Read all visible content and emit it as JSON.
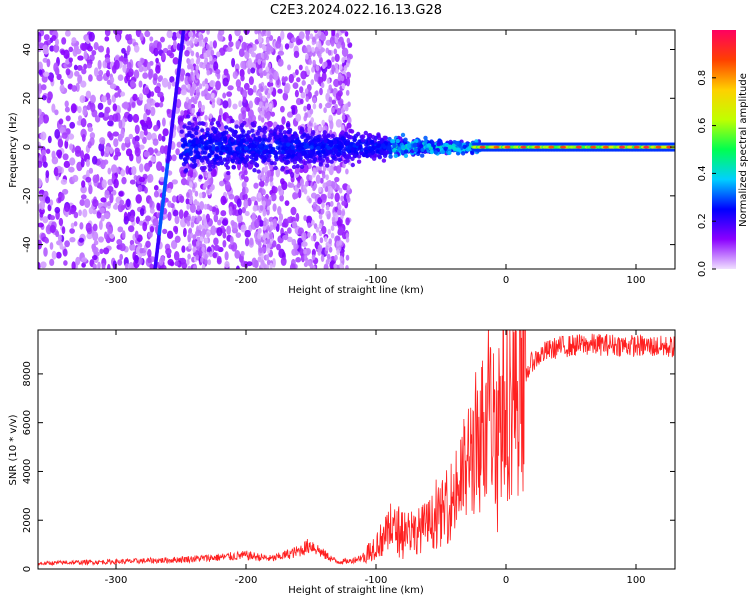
{
  "title": "C2E3.2024.022.16.13.G28",
  "chart_data": [
    {
      "type": "heatmap",
      "xlabel": "Height of straight line (km)",
      "ylabel": "Frequency (Hz)",
      "xlim": [
        -360,
        130
      ],
      "ylim": [
        -50,
        48
      ],
      "x_ticks": [
        -300,
        -200,
        -100,
        0,
        100
      ],
      "x_tick_labels": [
        "-300",
        "-200",
        "-100",
        "0",
        "100"
      ],
      "y_ticks": [
        -40,
        -20,
        0,
        20,
        40
      ],
      "y_tick_labels": [
        "-40",
        "-20",
        "0",
        "20",
        "40"
      ],
      "grid": false,
      "colorbar": {
        "label": "Normalized spectral amplitude",
        "range": [
          0,
          1
        ],
        "ticks": [
          0,
          0.2,
          0.4,
          0.6,
          0.8
        ],
        "tick_labels": [
          "0.0",
          "0.2",
          "0.4",
          "0.6",
          "0.8"
        ],
        "colormap": [
          "#f0e0ff",
          "#8a00ff",
          "#0000ff",
          "#00d0ff",
          "#00ff50",
          "#c0ff00",
          "#ffd000",
          "#ff4000",
          "#ff0060"
        ]
      },
      "features": [
        {
          "name": "",
          "x": [
            -270,
            -248
          ],
          "y": [
            -50,
            48
          ],
          "amplitude": 0.25
        },
        {
          "name": "",
          "x": [
            -20,
            130
          ],
          "y": [
            0,
            0
          ],
          "amplitude": 0.9
        }
      ]
    },
    {
      "type": "line",
      "xlabel": "Height of straight line (km)",
      "ylabel": "SNR (10 * v/v)",
      "xlim": [
        -360,
        130
      ],
      "ylim": [
        0,
        9800
      ],
      "x_ticks": [
        -300,
        -200,
        -100,
        0,
        100
      ],
      "x_tick_labels": [
        "-300",
        "-200",
        "-100",
        "0",
        "100"
      ],
      "y_ticks": [
        0,
        2000,
        4000,
        6000,
        8000
      ],
      "y_tick_labels": [
        "0",
        "2000",
        "4000",
        "6000",
        "8000"
      ],
      "grid": false,
      "color": "#ff2020",
      "series": [
        {
          "x": [
            -360,
            -340,
            -320,
            -300,
            -280,
            -260,
            -240,
            -220,
            -200,
            -180,
            -160,
            -150,
            -140,
            -130,
            -120,
            -110,
            -100,
            -90,
            -80,
            -70,
            -60,
            -50,
            -40,
            -30,
            -25,
            -20,
            -15,
            -10,
            -5,
            0,
            5,
            10,
            15,
            20,
            30,
            40,
            60,
            80,
            100,
            130
          ],
          "y": [
            220,
            260,
            280,
            300,
            330,
            360,
            420,
            480,
            560,
            420,
            720,
            1000,
            600,
            300,
            320,
            500,
            1000,
            1500,
            1700,
            1500,
            1800,
            2200,
            3000,
            4200,
            5000,
            5500,
            5900,
            6100,
            6500,
            6800,
            7000,
            7400,
            7900,
            8500,
            8900,
            9100,
            9200,
            9200,
            9150,
            9100
          ]
        }
      ]
    }
  ]
}
